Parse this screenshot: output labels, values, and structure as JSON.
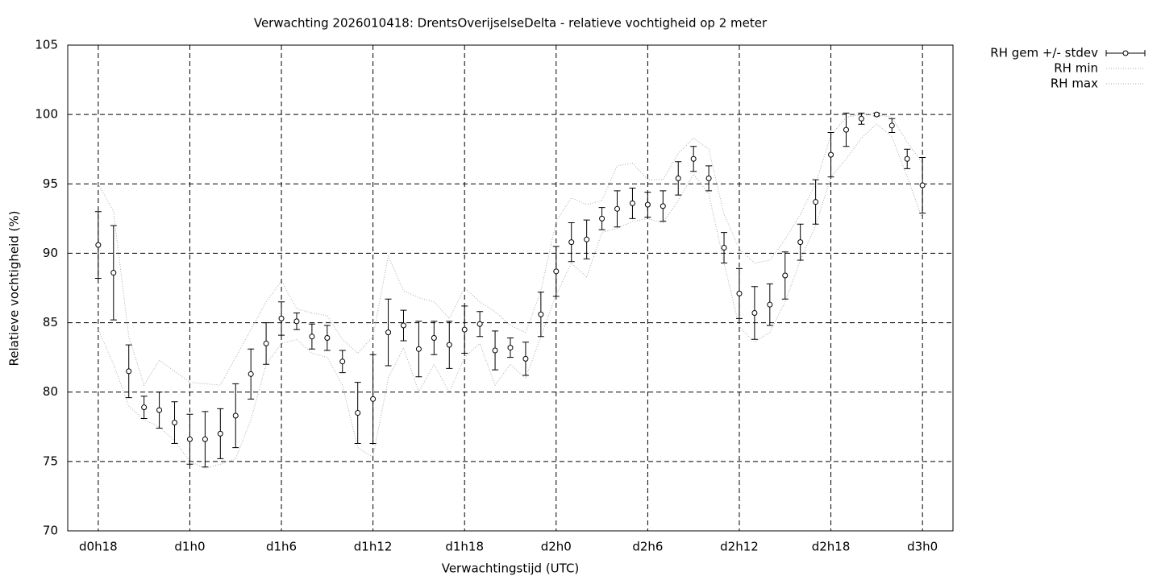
{
  "chart_data": {
    "type": "errorbar",
    "title": "Verwachting 2026010418: DrentsOverijselseDelta - relatieve vochtigheid op 2 meter",
    "xlabel": "Verwachtingstijd (UTC)",
    "ylabel": "Relatieve vochtigheid (%)",
    "x": [
      18,
      19,
      20,
      21,
      22,
      23,
      24,
      25,
      26,
      27,
      28,
      29,
      30,
      31,
      32,
      33,
      34,
      35,
      36,
      37,
      38,
      39,
      40,
      41,
      42,
      43,
      44,
      45,
      46,
      47,
      48,
      49,
      50,
      51,
      52,
      53,
      54,
      55,
      56,
      57,
      58,
      59,
      60,
      61,
      62,
      63,
      64,
      65,
      66,
      67,
      68,
      69,
      70,
      71,
      72
    ],
    "series": [
      {
        "name": "RH gem +/- stdev",
        "color": "#000000",
        "values": [
          90.6,
          88.6,
          81.5,
          78.9,
          78.7,
          77.8,
          76.6,
          76.6,
          77.0,
          78.3,
          81.3,
          83.5,
          85.3,
          85.1,
          84.0,
          83.9,
          82.2,
          78.5,
          79.5,
          84.3,
          84.8,
          83.1,
          83.9,
          83.4,
          84.5,
          84.9,
          83.0,
          83.2,
          82.4,
          85.6,
          88.7,
          90.8,
          91.0,
          92.5,
          93.2,
          93.6,
          93.5,
          93.4,
          95.4,
          96.8,
          95.4,
          90.4,
          87.1,
          85.7,
          86.3,
          88.4,
          90.8,
          93.7,
          97.1,
          98.9,
          99.7,
          100.0,
          99.2,
          96.8,
          94.9
        ],
        "errors": [
          2.4,
          3.4,
          1.9,
          0.8,
          1.3,
          1.5,
          1.8,
          2.0,
          1.8,
          2.3,
          1.8,
          1.5,
          1.2,
          0.6,
          0.9,
          0.9,
          0.8,
          2.2,
          3.2,
          2.4,
          1.1,
          2.0,
          1.2,
          1.7,
          1.7,
          0.9,
          1.4,
          0.7,
          1.2,
          1.6,
          1.8,
          1.4,
          1.4,
          0.8,
          1.3,
          1.1,
          0.9,
          1.1,
          1.2,
          0.9,
          0.9,
          1.1,
          1.8,
          1.9,
          1.5,
          1.7,
          1.3,
          1.6,
          1.6,
          1.2,
          0.4,
          0.1,
          0.5,
          0.7,
          2.0
        ]
      },
      {
        "name": "RH min",
        "color": "#aaaaaa",
        "values": [
          84.5,
          82,
          79,
          78,
          77.5,
          76.5,
          75,
          74.5,
          74.8,
          75.2,
          78,
          82,
          83.5,
          83.8,
          82.8,
          82.5,
          80.5,
          76,
          75.3,
          81,
          83.2,
          80,
          82,
          80,
          82.5,
          83.5,
          80.5,
          82,
          81,
          84,
          87,
          89.3,
          88.3,
          91.5,
          91.8,
          92.3,
          92.5,
          92.2,
          93.8,
          95.7,
          94.3,
          89.3,
          84.7,
          83.6,
          84.3,
          86.5,
          89.5,
          92,
          95.5,
          96.8,
          98.3,
          99.3,
          98.4,
          95.5,
          92.5
        ]
      },
      {
        "name": "RH max",
        "color": "#aaaaaa",
        "values": [
          95,
          93,
          84,
          80.5,
          82.3,
          81.5,
          80.7,
          80.6,
          80.5,
          82.5,
          84.5,
          86.5,
          88,
          86,
          85.7,
          85.5,
          83.8,
          82.8,
          84,
          89.8,
          87.3,
          86.8,
          86.5,
          85.3,
          87.5,
          86.5,
          85.8,
          84.8,
          84.3,
          87.3,
          92.3,
          94,
          93.5,
          93.8,
          96.3,
          96.5,
          95.3,
          95.3,
          97.2,
          98.3,
          97.5,
          92.8,
          90.3,
          89.3,
          89.5,
          91,
          92.8,
          95,
          98.5,
          99.8,
          100,
          100,
          99.8,
          98,
          96.5
        ]
      }
    ],
    "xlim": [
      16,
      74
    ],
    "xticks": [
      {
        "value": 18,
        "label": "d0h18"
      },
      {
        "value": 24,
        "label": "d1h0"
      },
      {
        "value": 30,
        "label": "d1h6"
      },
      {
        "value": 36,
        "label": "d1h12"
      },
      {
        "value": 42,
        "label": "d1h18"
      },
      {
        "value": 48,
        "label": "d2h0"
      },
      {
        "value": 54,
        "label": "d2h6"
      },
      {
        "value": 60,
        "label": "d2h12"
      },
      {
        "value": 66,
        "label": "d2h18"
      },
      {
        "value": 72,
        "label": "d3h0"
      }
    ],
    "ylim": [
      70,
      105
    ],
    "yticks": [
      70,
      75,
      80,
      85,
      90,
      95,
      100,
      105
    ],
    "grid": true,
    "legend": "top-right-outside"
  }
}
